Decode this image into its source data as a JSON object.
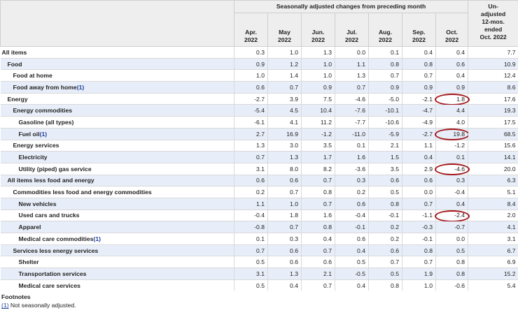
{
  "table": {
    "group_header": "Seasonally adjusted changes from preceding month",
    "columns": [
      [
        "Apr.",
        "2022"
      ],
      [
        "May",
        "2022"
      ],
      [
        "Jun.",
        "2022"
      ],
      [
        "Jul.",
        "2022"
      ],
      [
        "Aug.",
        "2022"
      ],
      [
        "Sep.",
        "2022"
      ],
      [
        "Oct.",
        "2022"
      ]
    ],
    "last_column": [
      "Un-",
      "adjusted",
      "12-mos.",
      "ended",
      "Oct. 2022"
    ],
    "rows": [
      {
        "label": "All items",
        "level": 0,
        "values": [
          "0.3",
          "1.0",
          "1.3",
          "0.0",
          "0.1",
          "0.4",
          "0.4",
          "7.7"
        ]
      },
      {
        "label": "Food",
        "level": 1,
        "values": [
          "0.9",
          "1.2",
          "1.0",
          "1.1",
          "0.8",
          "0.8",
          "0.6",
          "10.9"
        ]
      },
      {
        "label": "Food at home",
        "level": 2,
        "values": [
          "1.0",
          "1.4",
          "1.0",
          "1.3",
          "0.7",
          "0.7",
          "0.4",
          "12.4"
        ]
      },
      {
        "label": "Food away from home",
        "note": "(1)",
        "level": 2,
        "values": [
          "0.6",
          "0.7",
          "0.9",
          "0.7",
          "0.9",
          "0.9",
          "0.9",
          "8.6"
        ]
      },
      {
        "label": "Energy",
        "level": 1,
        "highlight": true,
        "values": [
          "-2.7",
          "3.9",
          "7.5",
          "-4.6",
          "-5.0",
          "-2.1",
          "1.8",
          "17.6"
        ]
      },
      {
        "label": "Energy commodities",
        "level": 2,
        "values": [
          "-5.4",
          "4.5",
          "10.4",
          "-7.6",
          "-10.1",
          "-4.7",
          "4.4",
          "19.3"
        ]
      },
      {
        "label": "Gasoline (all types)",
        "level": 3,
        "values": [
          "-6.1",
          "4.1",
          "11.2",
          "-7.7",
          "-10.6",
          "-4.9",
          "4.0",
          "17.5"
        ]
      },
      {
        "label": "Fuel oil",
        "note": "(1)",
        "level": 3,
        "highlight": true,
        "values": [
          "2.7",
          "16.9",
          "-1.2",
          "-11.0",
          "-5.9",
          "-2.7",
          "19.8",
          "68.5"
        ]
      },
      {
        "label": "Energy services",
        "level": 2,
        "values": [
          "1.3",
          "3.0",
          "3.5",
          "0.1",
          "2.1",
          "1.1",
          "-1.2",
          "15.6"
        ]
      },
      {
        "label": "Electricity",
        "level": 3,
        "values": [
          "0.7",
          "1.3",
          "1.7",
          "1.6",
          "1.5",
          "0.4",
          "0.1",
          "14.1"
        ]
      },
      {
        "label": "Utility (piped) gas service",
        "level": 3,
        "highlight": true,
        "values": [
          "3.1",
          "8.0",
          "8.2",
          "-3.6",
          "3.5",
          "2.9",
          "-4.6",
          "20.0"
        ]
      },
      {
        "label": "All items less food and energy",
        "level": 1,
        "values": [
          "0.6",
          "0.6",
          "0.7",
          "0.3",
          "0.6",
          "0.6",
          "0.3",
          "6.3"
        ]
      },
      {
        "label": "Commodities less food and energy commodities",
        "level": 2,
        "values": [
          "0.2",
          "0.7",
          "0.8",
          "0.2",
          "0.5",
          "0.0",
          "-0.4",
          "5.1"
        ]
      },
      {
        "label": "New vehicles",
        "level": 3,
        "values": [
          "1.1",
          "1.0",
          "0.7",
          "0.6",
          "0.8",
          "0.7",
          "0.4",
          "8.4"
        ]
      },
      {
        "label": "Used cars and trucks",
        "level": 3,
        "highlight": true,
        "values": [
          "-0.4",
          "1.8",
          "1.6",
          "-0.4",
          "-0.1",
          "-1.1",
          "-2.4",
          "2.0"
        ]
      },
      {
        "label": "Apparel",
        "level": 3,
        "values": [
          "-0.8",
          "0.7",
          "0.8",
          "-0.1",
          "0.2",
          "-0.3",
          "-0.7",
          "4.1"
        ]
      },
      {
        "label": "Medical care commodities",
        "note": "(1)",
        "level": 3,
        "values": [
          "0.1",
          "0.3",
          "0.4",
          "0.6",
          "0.2",
          "-0.1",
          "0.0",
          "3.1"
        ]
      },
      {
        "label": "Services less energy services",
        "level": 2,
        "values": [
          "0.7",
          "0.6",
          "0.7",
          "0.4",
          "0.6",
          "0.8",
          "0.5",
          "6.7"
        ]
      },
      {
        "label": "Shelter",
        "level": 3,
        "values": [
          "0.5",
          "0.6",
          "0.6",
          "0.5",
          "0.7",
          "0.7",
          "0.8",
          "6.9"
        ]
      },
      {
        "label": "Transportation services",
        "level": 3,
        "values": [
          "3.1",
          "1.3",
          "2.1",
          "-0.5",
          "0.5",
          "1.9",
          "0.8",
          "15.2"
        ]
      },
      {
        "label": "Medical care services",
        "level": 3,
        "values": [
          "0.5",
          "0.4",
          "0.7",
          "0.4",
          "0.8",
          "1.0",
          "-0.6",
          "5.4"
        ]
      }
    ]
  },
  "footnotes": {
    "title": "Footnotes",
    "items": [
      {
        "ref": "(1)",
        "text": " Not seasonally adjusted."
      }
    ]
  }
}
